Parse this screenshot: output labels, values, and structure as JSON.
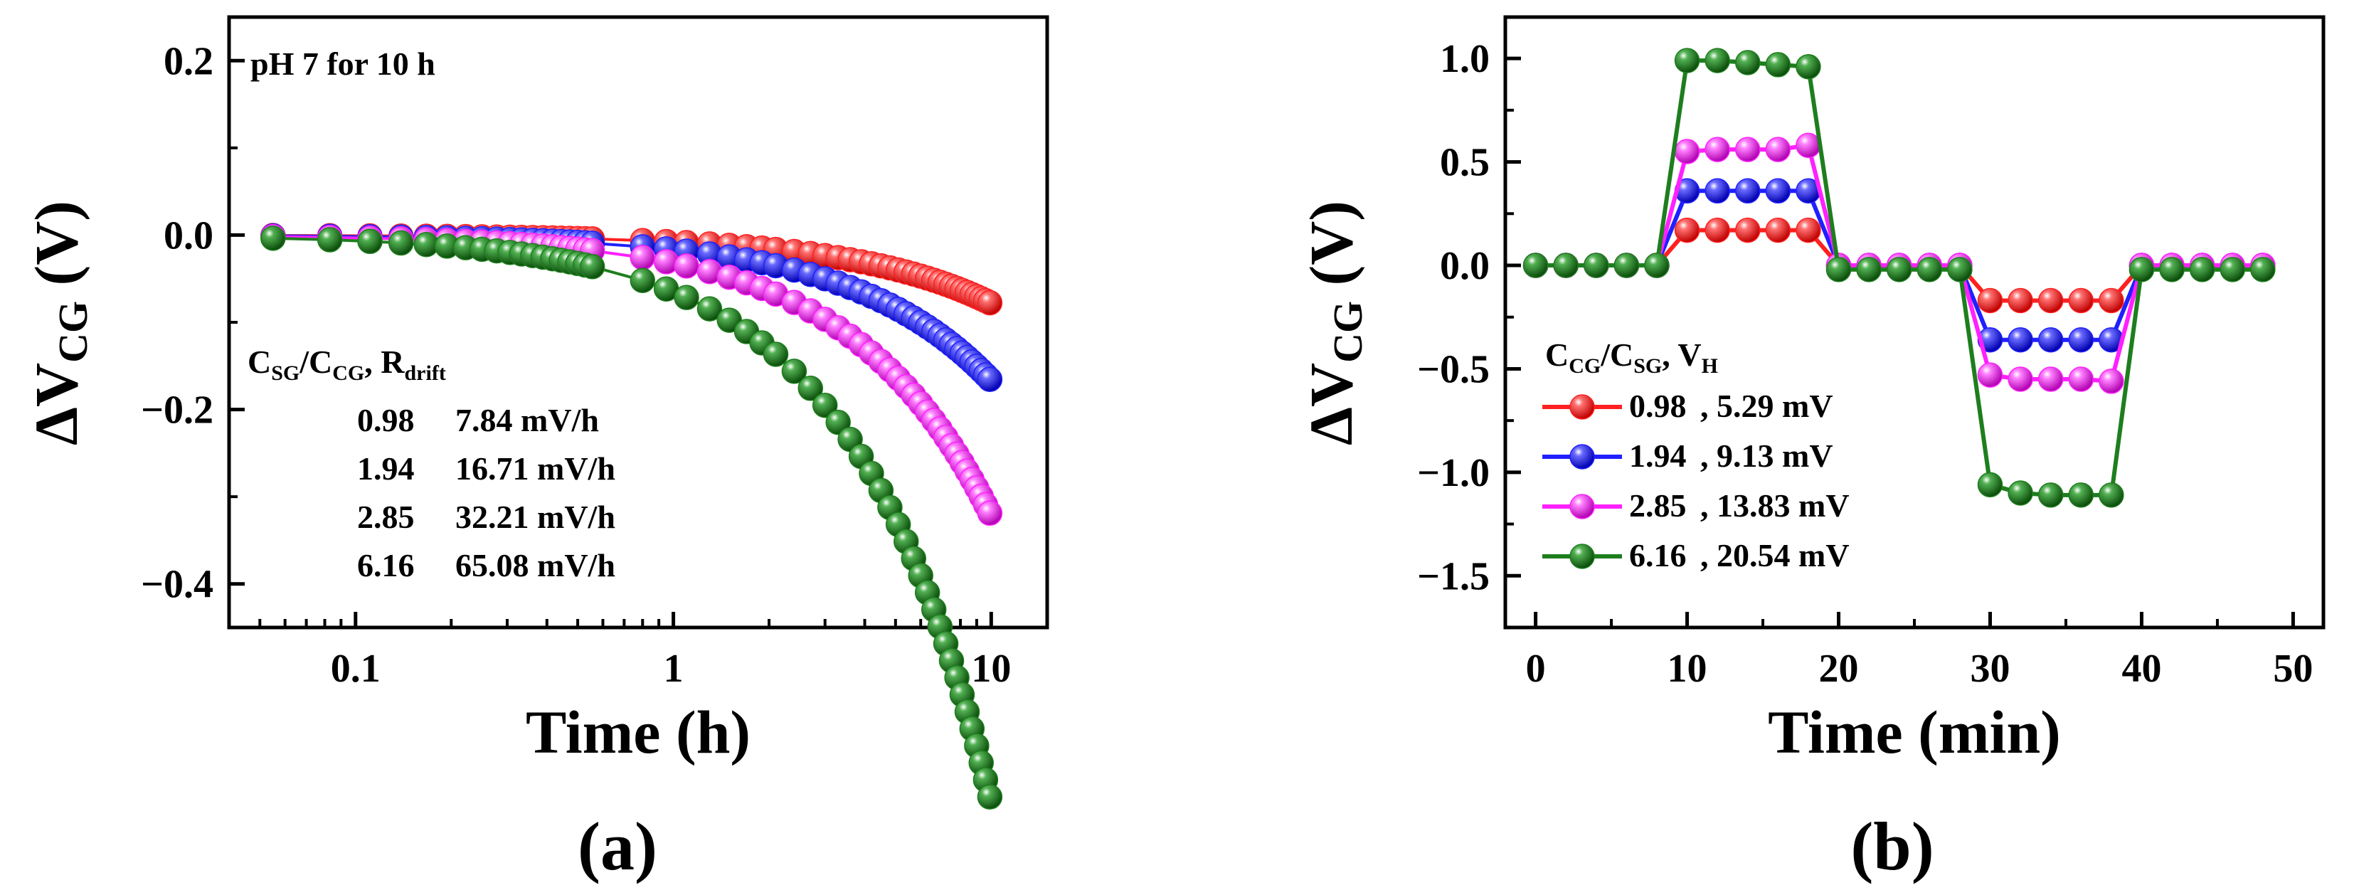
{
  "chart_data": [
    {
      "type": "scatter",
      "panel_label": "(a)",
      "annotation": "pH 7 for 10 h",
      "xlabel": "Time (h)",
      "ylabel": {
        "main": "ΔV",
        "sub": "CG",
        "unit": " (V)"
      },
      "xscale": "log",
      "xlim": [
        0.04,
        15
      ],
      "ylim": [
        -0.45,
        0.25
      ],
      "xticks": [
        {
          "v": 0.1,
          "label": "0.1"
        },
        {
          "v": 1,
          "label": "1"
        },
        {
          "v": 10,
          "label": "10"
        }
      ],
      "yticks": [
        {
          "v": 0.2,
          "label": "0.2"
        },
        {
          "v": 0.0,
          "label": "0.0"
        },
        {
          "v": -0.2,
          "label": "−0.2"
        },
        {
          "v": -0.4,
          "label": "−0.4"
        }
      ],
      "legend": {
        "title": {
          "c1": "C",
          "s1": "SG",
          "slash": "/C",
          "s2": "CG",
          "comma": ", R",
          "s3": "drift"
        },
        "position": "lower-center",
        "entries": [
          {
            "ratio": "0.98",
            "value": "7.84 mV/h"
          },
          {
            "ratio": "1.94",
            "value": "16.71 mV/h"
          },
          {
            "ratio": "2.85",
            "value": "32.21 mV/h"
          },
          {
            "ratio": "6.16",
            "value": "65.08 mV/h"
          }
        ]
      },
      "series": [
        {
          "name": "0.98",
          "color": "#ff2020",
          "drift_v_per_h": 0.00784
        },
        {
          "name": "1.94",
          "color": "#2020ff",
          "drift_v_per_h": 0.01671
        },
        {
          "name": "2.85",
          "color": "#ff20ff",
          "drift_v_per_h": 0.03221
        },
        {
          "name": "6.16",
          "color": "#1e7e1e",
          "drift_v_per_h": 0.06508
        }
      ],
      "x": [
        0.055,
        0.083,
        0.111,
        0.139,
        0.167,
        0.194,
        0.222,
        0.25,
        0.278,
        0.306,
        0.333,
        0.361,
        0.389,
        0.417,
        0.444,
        0.472,
        0.5,
        0.528,
        0.556,
        0.8,
        0.95,
        1.1,
        1.3,
        1.5,
        1.7,
        1.9,
        2.1,
        2.4,
        2.7,
        3.0,
        3.3,
        3.6,
        3.9,
        4.2,
        4.5,
        4.8,
        5.1,
        5.4,
        5.7,
        6.0,
        6.3,
        6.6,
        6.9,
        7.2,
        7.5,
        7.8,
        8.1,
        8.4,
        8.7,
        9.0,
        9.3,
        9.6,
        9.9
      ]
    },
    {
      "type": "line",
      "panel_label": "(b)",
      "xlabel": "Time (min)",
      "ylabel": {
        "main": "ΔV",
        "sub": "CG",
        "unit": " (V)"
      },
      "xlim": [
        -2,
        52
      ],
      "ylim": [
        -1.75,
        1.2
      ],
      "xticks": [
        {
          "v": 0,
          "label": "0"
        },
        {
          "v": 10,
          "label": "10"
        },
        {
          "v": 20,
          "label": "20"
        },
        {
          "v": 30,
          "label": "30"
        },
        {
          "v": 40,
          "label": "40"
        },
        {
          "v": 50,
          "label": "50"
        }
      ],
      "yticks": [
        {
          "v": 1.0,
          "label": "1.0"
        },
        {
          "v": 0.5,
          "label": "0.5"
        },
        {
          "v": 0.0,
          "label": "0.0"
        },
        {
          "v": -0.5,
          "label": "−0.5"
        },
        {
          "v": -1.0,
          "label": "−1.0"
        },
        {
          "v": -1.5,
          "label": "−1.5"
        }
      ],
      "legend": {
        "title": {
          "c1": "C",
          "s1": "CG",
          "slash": "/C",
          "s2": "SG",
          "comma": ", V",
          "s3": "H"
        },
        "position": "lower-left",
        "entries": [
          {
            "ratio": "0.98",
            "value": ", 5.29 mV"
          },
          {
            "ratio": "1.94",
            "value": ", 9.13 mV"
          },
          {
            "ratio": "2.85",
            "value": ", 13.83 mV"
          },
          {
            "ratio": "6.16",
            "value": ", 20.54 mV"
          }
        ]
      },
      "x": [
        0,
        2,
        4,
        6,
        8,
        10,
        12,
        14,
        16,
        18,
        20,
        22,
        24,
        26,
        28,
        30,
        32,
        34,
        36,
        38,
        40,
        42,
        44,
        46,
        48
      ],
      "series": [
        {
          "name": "0.98",
          "color": "#ff2020",
          "values": [
            0,
            0,
            0,
            0,
            0,
            0.17,
            0.17,
            0.17,
            0.17,
            0.17,
            0,
            0,
            0,
            0,
            0,
            -0.17,
            -0.17,
            -0.17,
            -0.17,
            -0.17,
            0,
            0,
            0,
            0,
            0
          ]
        },
        {
          "name": "1.94",
          "color": "#2020ff",
          "values": [
            0,
            0,
            0,
            0,
            0,
            0.36,
            0.36,
            0.36,
            0.36,
            0.36,
            0,
            0,
            0,
            0,
            0,
            -0.36,
            -0.36,
            -0.36,
            -0.36,
            -0.36,
            0,
            0,
            0,
            0,
            0
          ]
        },
        {
          "name": "2.85",
          "color": "#ff20ff",
          "values": [
            0,
            0,
            0,
            0,
            0,
            0.55,
            0.56,
            0.56,
            0.56,
            0.58,
            0,
            0,
            0,
            0,
            0,
            -0.53,
            -0.55,
            -0.55,
            -0.55,
            -0.56,
            0,
            0,
            0,
            0,
            0
          ]
        },
        {
          "name": "6.16",
          "color": "#1e7e1e",
          "values": [
            0,
            0,
            0,
            0,
            0,
            0.99,
            0.99,
            0.98,
            0.97,
            0.96,
            -0.02,
            -0.02,
            -0.02,
            -0.02,
            -0.02,
            -1.06,
            -1.1,
            -1.11,
            -1.11,
            -1.11,
            -0.02,
            -0.02,
            -0.02,
            -0.02,
            -0.02
          ]
        }
      ]
    }
  ]
}
